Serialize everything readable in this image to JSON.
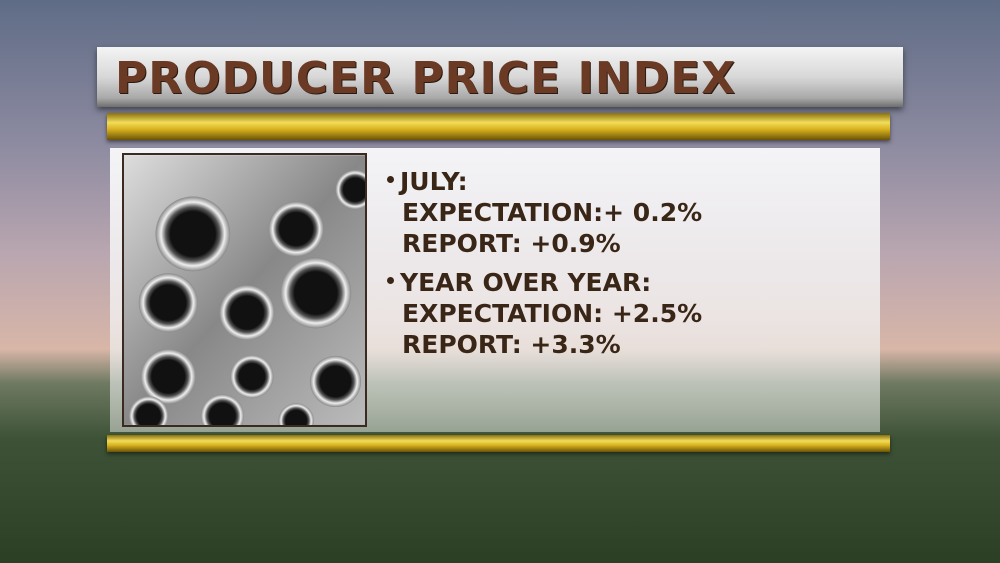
{
  "header": {
    "title": "PRODUCER PRICE INDEX"
  },
  "bullets": [
    {
      "heading": "JULY:",
      "lines": [
        "EXPECTATION:+ 0.2%",
        "REPORT: +0.9%"
      ]
    },
    {
      "heading": "YEAR OVER YEAR:",
      "lines": [
        "EXPECTATION: +2.5%",
        "REPORT: +3.3%"
      ]
    }
  ]
}
